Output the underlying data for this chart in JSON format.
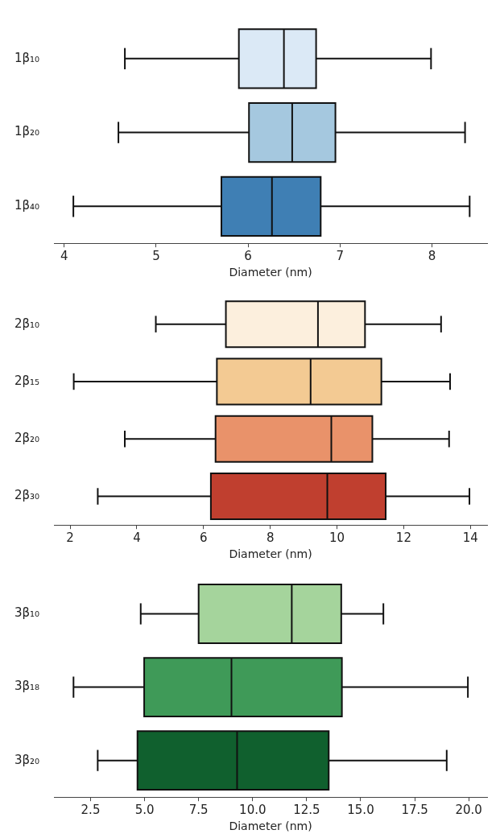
{
  "chart_data": [
    {
      "type": "box",
      "orientation": "horizontal",
      "xlabel": "Diameter (nm)",
      "categories": [
        "1β₁₀",
        "1β₂₀",
        "1β₄₀"
      ],
      "colors": [
        "#dbe9f6",
        "#a5c8df",
        "#3f7fb4"
      ],
      "boxes": [
        {
          "low": 4.66,
          "q1": 5.9,
          "median": 6.39,
          "q3": 6.74,
          "high": 7.99
        },
        {
          "low": 4.59,
          "q1": 6.01,
          "median": 6.48,
          "q3": 6.95,
          "high": 8.36
        },
        {
          "low": 4.1,
          "q1": 5.71,
          "median": 6.26,
          "q3": 6.79,
          "high": 8.41
        }
      ],
      "xlim": [
        3.89,
        8.6
      ],
      "xticks": [
        4,
        5,
        6,
        7,
        8
      ]
    },
    {
      "type": "box",
      "orientation": "horizontal",
      "xlabel": "Diameter (nm)",
      "categories": [
        "2β₁₀",
        "2β₁₅",
        "2β₂₀",
        "2β₃₀"
      ],
      "colors": [
        "#fcefdd",
        "#f3ca93",
        "#e9926a",
        "#c03f2f"
      ],
      "boxes": [
        {
          "low": 4.57,
          "q1": 6.67,
          "median": 9.43,
          "q3": 10.84,
          "high": 13.12
        },
        {
          "low": 2.11,
          "q1": 6.4,
          "median": 9.21,
          "q3": 11.33,
          "high": 13.39
        },
        {
          "low": 3.64,
          "q1": 6.36,
          "median": 9.83,
          "q3": 11.06,
          "high": 13.36
        },
        {
          "low": 2.83,
          "q1": 6.22,
          "median": 9.71,
          "q3": 11.46,
          "high": 13.97
        }
      ],
      "xlim": [
        1.52,
        14.5
      ],
      "xticks": [
        2,
        4,
        6,
        8,
        10,
        12,
        14
      ]
    },
    {
      "type": "box",
      "orientation": "horizontal",
      "xlabel": "Diameter (nm)",
      "categories": [
        "3β₁₀",
        "3β₁₈",
        "3β₂₀"
      ],
      "colors": [
        "#a5d49c",
        "#3f9a58",
        "#10602e"
      ],
      "boxes": [
        {
          "low": 4.82,
          "q1": 7.5,
          "median": 11.81,
          "q3": 14.1,
          "high": 16.05
        },
        {
          "low": 1.71,
          "q1": 4.98,
          "median": 9.02,
          "q3": 14.13,
          "high": 19.96
        },
        {
          "low": 2.83,
          "q1": 4.67,
          "median": 9.28,
          "q3": 13.52,
          "high": 18.98
        }
      ],
      "xlim": [
        0.81,
        20.85
      ],
      "xticks": [
        {
          "value": 2.5,
          "label": "2.5"
        },
        {
          "value": 5,
          "label": "5.0"
        },
        {
          "value": 7.5,
          "label": "7.5"
        },
        {
          "value": 10,
          "label": "10.0"
        },
        {
          "value": 12.5,
          "label": "12.5"
        },
        {
          "value": 15,
          "label": "15.0"
        },
        {
          "value": 17.5,
          "label": "17.5"
        },
        {
          "value": 20,
          "label": "20.0"
        }
      ]
    }
  ]
}
